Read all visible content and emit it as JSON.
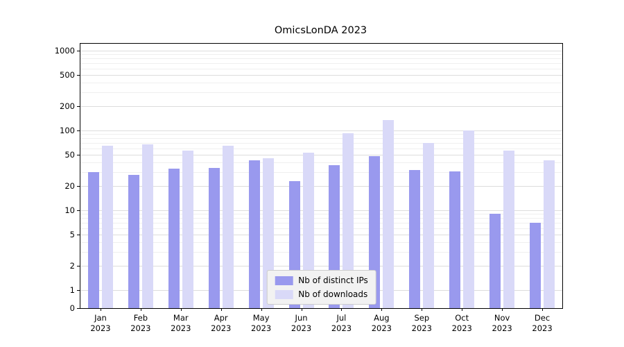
{
  "title": "OmicsLonDA 2023",
  "chart_data": {
    "type": "bar",
    "title": "OmicsLonDA 2023",
    "yscale": "symlog",
    "grid": true,
    "legend_position": "lower center",
    "xlabel": "",
    "ylabel": "",
    "yticks": [
      0,
      1,
      2,
      5,
      10,
      20,
      50,
      100,
      200,
      500,
      1000
    ],
    "ylim": [
      0,
      1220
    ],
    "categories": [
      {
        "month": "Jan",
        "year": "2023"
      },
      {
        "month": "Feb",
        "year": "2023"
      },
      {
        "month": "Mar",
        "year": "2023"
      },
      {
        "month": "Apr",
        "year": "2023"
      },
      {
        "month": "May",
        "year": "2023"
      },
      {
        "month": "Jun",
        "year": "2023"
      },
      {
        "month": "Jul",
        "year": "2023"
      },
      {
        "month": "Aug",
        "year": "2023"
      },
      {
        "month": "Sep",
        "year": "2023"
      },
      {
        "month": "Oct",
        "year": "2023"
      },
      {
        "month": "Nov",
        "year": "2023"
      },
      {
        "month": "Dec",
        "year": "2023"
      }
    ],
    "series": [
      {
        "name": "Nb of distinct IPs",
        "color": "#9999ee",
        "values": [
          30,
          28,
          33,
          34,
          42,
          23,
          37,
          48,
          32,
          31,
          9,
          7
        ]
      },
      {
        "name": "Nb of downloads",
        "color": "#d9d9f8",
        "values": [
          65,
          67,
          56,
          65,
          45,
          53,
          93,
          135,
          70,
          100,
          56,
          42
        ]
      }
    ]
  }
}
